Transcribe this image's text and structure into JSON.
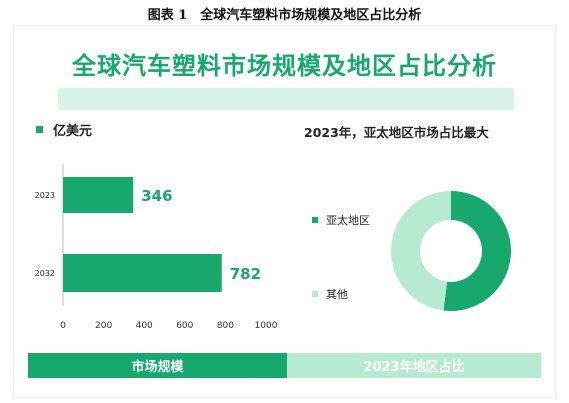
{
  "caption": "图表 1　全球汽车塑料市场规模及地区占比分析",
  "title": "全球汽车塑料市场规模及地区占比分析",
  "colors": {
    "primary": "#17a86e",
    "light": "#b7ebd1",
    "deco": "#d7f4e6"
  },
  "chart_data": [
    {
      "type": "bar",
      "orientation": "horizontal",
      "unit_label": "亿美元",
      "categories": [
        "2023",
        "2032"
      ],
      "values": [
        346,
        782
      ],
      "xlim": [
        0,
        1000
      ],
      "xticks": [
        0,
        200,
        400,
        600,
        800,
        1000
      ],
      "grid": false,
      "footer_label": "市场规模"
    },
    {
      "type": "pie",
      "donut": true,
      "title": "2023年，亚太地区市场占比最大",
      "slices": [
        {
          "label": "亚太地区",
          "value": 52,
          "color": "#17a86e"
        },
        {
          "label": "其他",
          "value": 48,
          "color": "#b7ebd1"
        }
      ],
      "legend_position": "left",
      "footer_label": "2023年地区占比"
    }
  ]
}
